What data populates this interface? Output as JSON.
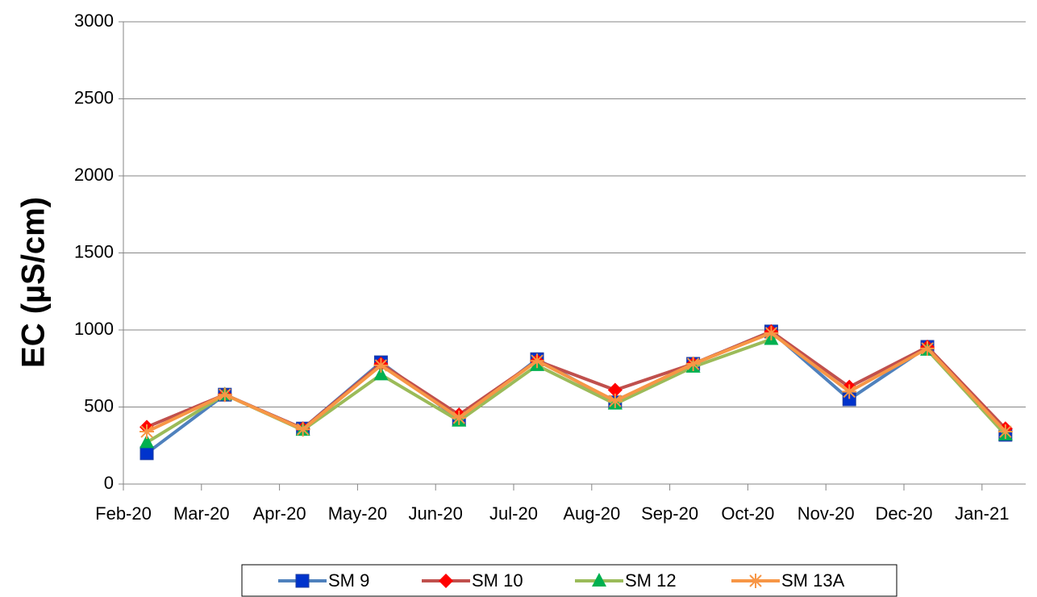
{
  "chart_data": {
    "type": "line",
    "y_label": "EC (µS/cm)",
    "categories": [
      "Feb-20",
      "Mar-20",
      "Apr-20",
      "May-20",
      "Jun-20",
      "Jul-20",
      "Aug-20",
      "Sep-20",
      "Oct-20",
      "Nov-20",
      "Dec-20",
      "Jan-21"
    ],
    "series": [
      {
        "name": "SM 9",
        "color": "#4f81bd",
        "marker": "square",
        "marker_color": "#0033cc",
        "values": [
          200,
          580,
          360,
          790,
          420,
          810,
          530,
          780,
          990,
          550,
          890,
          320
        ]
      },
      {
        "name": "SM 10",
        "color": "#c0504d",
        "marker": "diamond",
        "marker_color": "#ff0000",
        "values": [
          370,
          580,
          360,
          780,
          450,
          800,
          610,
          780,
          990,
          630,
          890,
          360
        ]
      },
      {
        "name": "SM 12",
        "color": "#9bbb59",
        "marker": "triangle",
        "marker_color": "#00b050",
        "values": [
          270,
          580,
          350,
          710,
          410,
          770,
          520,
          760,
          940,
          null,
          870,
          320
        ]
      },
      {
        "name": "SM 13A",
        "color": "#f79646",
        "marker": "star",
        "marker_color": "#f79646",
        "values": [
          340,
          580,
          355,
          770,
          430,
          800,
          540,
          780,
          980,
          600,
          880,
          340
        ]
      }
    ],
    "ylim": [
      0,
      3000
    ],
    "yticks": [
      0,
      500,
      1000,
      1500,
      2000,
      2500,
      3000
    ],
    "grid": true,
    "legend": "bottom"
  }
}
